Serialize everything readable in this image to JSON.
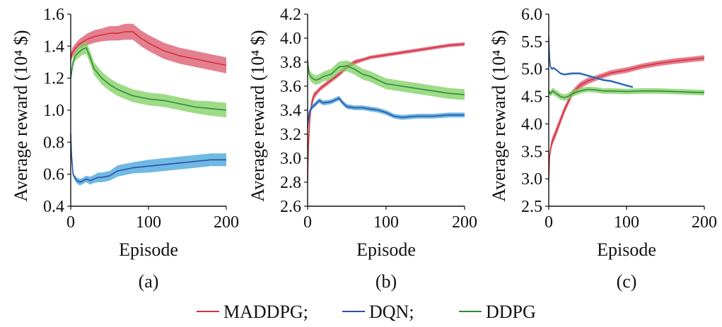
{
  "figure": {
    "legend": [
      {
        "label": "MADDPG;",
        "color": "#d62f3a"
      },
      {
        "label": "DQN;",
        "color": "#2a4fa5"
      },
      {
        "label": "DDPG",
        "color": "#2e8b3a"
      }
    ]
  },
  "chart_data": [
    {
      "type": "line",
      "panel_label": "(a)",
      "xlabel": "Episode",
      "ylabel": "Average reward (10⁴ $)",
      "xlim": [
        0,
        200
      ],
      "ylim": [
        0.4,
        1.6
      ],
      "xticks": [
        "0",
        "100",
        "200"
      ],
      "yticks": [
        "0.4",
        "0.6",
        "0.8",
        "1.0",
        "1.2",
        "1.4",
        "1.6"
      ],
      "grid": false,
      "series": [
        {
          "name": "MADDPG",
          "color": "#d62f3a",
          "band_color": "#d9546a",
          "x": [
            0,
            2,
            5,
            10,
            20,
            30,
            40,
            50,
            60,
            70,
            80,
            90,
            100,
            120,
            140,
            160,
            180,
            200
          ],
          "y": [
            1.32,
            1.36,
            1.38,
            1.41,
            1.44,
            1.46,
            1.47,
            1.48,
            1.48,
            1.49,
            1.49,
            1.45,
            1.42,
            1.37,
            1.34,
            1.32,
            1.3,
            1.28
          ],
          "band": [
            0.02,
            0.03,
            0.03,
            0.03,
            0.035,
            0.04,
            0.04,
            0.045,
            0.045,
            0.05,
            0.05,
            0.05,
            0.05,
            0.05,
            0.05,
            0.05,
            0.05,
            0.05
          ]
        },
        {
          "name": "DQN",
          "color": "#2a4fa5",
          "band_color": "#3fa2d9",
          "x": [
            0,
            1,
            3,
            5,
            8,
            12,
            16,
            20,
            25,
            30,
            35,
            40,
            50,
            60,
            70,
            80,
            100,
            120,
            140,
            160,
            180,
            200
          ],
          "y": [
            0.85,
            0.72,
            0.6,
            0.58,
            0.56,
            0.55,
            0.56,
            0.57,
            0.56,
            0.57,
            0.58,
            0.58,
            0.59,
            0.62,
            0.63,
            0.64,
            0.65,
            0.66,
            0.67,
            0.68,
            0.69,
            0.69
          ],
          "band": [
            0.0,
            0.0,
            0.01,
            0.015,
            0.02,
            0.02,
            0.02,
            0.02,
            0.025,
            0.025,
            0.03,
            0.03,
            0.03,
            0.035,
            0.035,
            0.035,
            0.04,
            0.04,
            0.04,
            0.04,
            0.04,
            0.04
          ]
        },
        {
          "name": "DDPG",
          "color": "#2e8b3a",
          "band_color": "#7ccf5e",
          "x": [
            0,
            3,
            6,
            10,
            15,
            20,
            25,
            30,
            40,
            50,
            60,
            70,
            80,
            90,
            100,
            120,
            140,
            160,
            180,
            200
          ],
          "y": [
            1.2,
            1.3,
            1.34,
            1.36,
            1.38,
            1.39,
            1.33,
            1.26,
            1.2,
            1.16,
            1.13,
            1.11,
            1.09,
            1.08,
            1.07,
            1.06,
            1.04,
            1.02,
            1.01,
            1.0
          ],
          "band": [
            0.02,
            0.03,
            0.03,
            0.035,
            0.035,
            0.04,
            0.04,
            0.04,
            0.04,
            0.04,
            0.04,
            0.04,
            0.04,
            0.04,
            0.04,
            0.04,
            0.04,
            0.04,
            0.045,
            0.045
          ]
        }
      ]
    },
    {
      "type": "line",
      "panel_label": "(b)",
      "xlabel": "Episode",
      "ylabel": "Average reward (10⁴ $)",
      "xlim": [
        0,
        200
      ],
      "ylim": [
        2.6,
        4.2
      ],
      "xticks": [
        "0",
        "100",
        "200"
      ],
      "yticks": [
        "2.6",
        "2.8",
        "3.0",
        "3.2",
        "3.4",
        "3.6",
        "3.8",
        "4.0",
        "4.2"
      ],
      "grid": false,
      "series": [
        {
          "name": "MADDPG",
          "color": "#d62f3a",
          "band_color": "#d9546a",
          "x": [
            0,
            1,
            3,
            5,
            8,
            12,
            16,
            20,
            30,
            40,
            50,
            60,
            70,
            80,
            90,
            100,
            120,
            140,
            160,
            180,
            200
          ],
          "y": [
            2.82,
            3.1,
            3.35,
            3.45,
            3.52,
            3.55,
            3.58,
            3.6,
            3.65,
            3.7,
            3.76,
            3.8,
            3.82,
            3.84,
            3.85,
            3.86,
            3.88,
            3.9,
            3.92,
            3.94,
            3.95
          ],
          "band": [
            0.0,
            0.05,
            0.05,
            0.04,
            0.03,
            0.02,
            0.02,
            0.02,
            0.02,
            0.02,
            0.02,
            0.02,
            0.015,
            0.015,
            0.015,
            0.015,
            0.015,
            0.015,
            0.015,
            0.015,
            0.015
          ]
        },
        {
          "name": "DQN",
          "color": "#2a4fa5",
          "band_color": "#3fa2d9",
          "x": [
            0,
            2,
            5,
            10,
            15,
            20,
            30,
            40,
            45,
            50,
            60,
            70,
            80,
            90,
            100,
            110,
            120,
            140,
            160,
            180,
            200
          ],
          "y": [
            3.25,
            3.38,
            3.42,
            3.45,
            3.48,
            3.46,
            3.47,
            3.5,
            3.46,
            3.43,
            3.42,
            3.42,
            3.41,
            3.4,
            3.38,
            3.35,
            3.34,
            3.35,
            3.35,
            3.36,
            3.36
          ],
          "band": [
            0.02,
            0.02,
            0.02,
            0.02,
            0.02,
            0.02,
            0.02,
            0.02,
            0.02,
            0.02,
            0.02,
            0.02,
            0.02,
            0.02,
            0.02,
            0.02,
            0.02,
            0.02,
            0.02,
            0.02,
            0.02
          ]
        },
        {
          "name": "DDPG",
          "color": "#2e8b3a",
          "band_color": "#7ccf5e",
          "x": [
            0,
            2,
            5,
            10,
            15,
            20,
            30,
            40,
            50,
            60,
            70,
            80,
            90,
            100,
            120,
            140,
            160,
            180,
            200
          ],
          "y": [
            3.82,
            3.7,
            3.67,
            3.65,
            3.66,
            3.68,
            3.7,
            3.76,
            3.77,
            3.74,
            3.7,
            3.68,
            3.65,
            3.62,
            3.6,
            3.58,
            3.56,
            3.54,
            3.53
          ],
          "band": [
            0.03,
            0.04,
            0.04,
            0.04,
            0.04,
            0.04,
            0.045,
            0.045,
            0.045,
            0.045,
            0.045,
            0.045,
            0.045,
            0.045,
            0.045,
            0.045,
            0.045,
            0.045,
            0.045
          ]
        }
      ]
    },
    {
      "type": "line",
      "panel_label": "(c)",
      "xlabel": "Episode",
      "ylabel": "Average reward (10⁴ $)",
      "xlim": [
        0,
        200
      ],
      "ylim": [
        2.5,
        6.0
      ],
      "xticks": [
        "0",
        "100",
        "200"
      ],
      "yticks": [
        "2.5",
        "3.0",
        "3.5",
        "4.0",
        "4.5",
        "5.0",
        "5.5",
        "6.0"
      ],
      "grid": false,
      "series": [
        {
          "name": "MADDPG",
          "color": "#d62f3a",
          "band_color": "#d9546a",
          "x": [
            0,
            1,
            3,
            5,
            8,
            12,
            16,
            20,
            30,
            40,
            50,
            60,
            70,
            80,
            100,
            120,
            140,
            160,
            180,
            200
          ],
          "y": [
            2.95,
            3.4,
            3.6,
            3.7,
            3.8,
            3.95,
            4.1,
            4.25,
            4.55,
            4.7,
            4.78,
            4.83,
            4.88,
            4.93,
            4.98,
            5.05,
            5.1,
            5.14,
            5.17,
            5.2
          ],
          "band": [
            0.0,
            0.06,
            0.08,
            0.08,
            0.08,
            0.08,
            0.07,
            0.07,
            0.06,
            0.06,
            0.06,
            0.05,
            0.05,
            0.05,
            0.05,
            0.05,
            0.05,
            0.05,
            0.05,
            0.05
          ]
        },
        {
          "name": "DQN",
          "color": "#2a4fa5",
          "band_color": "#3fa2d9",
          "x": [
            0,
            1,
            2,
            4,
            6,
            10,
            15,
            20,
            30,
            40,
            50,
            60,
            70,
            80,
            90,
            100,
            108
          ],
          "y": [
            5.6,
            5.2,
            5.05,
            5.0,
            5.02,
            4.98,
            4.92,
            4.9,
            4.92,
            4.92,
            4.88,
            4.84,
            4.8,
            4.78,
            4.74,
            4.7,
            4.67
          ],
          "band": [
            0.0,
            0.02,
            0.02,
            0.02,
            0.02,
            0.02,
            0.02,
            0.02,
            0.02,
            0.02,
            0.02,
            0.02,
            0.02,
            0.02,
            0.02,
            0.02,
            0.02
          ]
        },
        {
          "name": "DDPG",
          "color": "#2e8b3a",
          "band_color": "#7ccf5e",
          "x": [
            0,
            2,
            5,
            10,
            15,
            20,
            25,
            30,
            40,
            50,
            60,
            70,
            80,
            100,
            120,
            140,
            160,
            180,
            200
          ],
          "y": [
            4.6,
            4.55,
            4.6,
            4.55,
            4.5,
            4.48,
            4.5,
            4.55,
            4.6,
            4.63,
            4.62,
            4.6,
            4.6,
            4.59,
            4.6,
            4.6,
            4.59,
            4.58,
            4.57
          ],
          "band": [
            0.04,
            0.05,
            0.06,
            0.06,
            0.06,
            0.06,
            0.06,
            0.06,
            0.05,
            0.05,
            0.05,
            0.05,
            0.05,
            0.05,
            0.05,
            0.05,
            0.05,
            0.05,
            0.05
          ]
        }
      ]
    }
  ]
}
